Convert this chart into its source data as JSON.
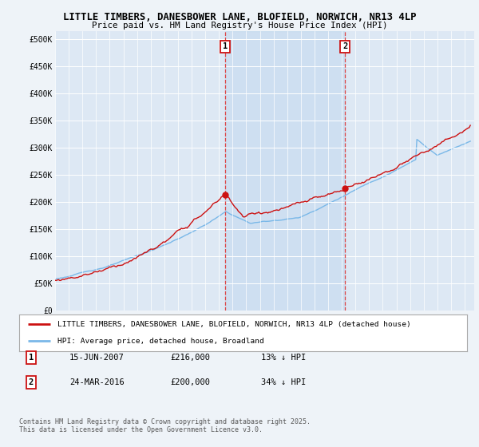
{
  "title1": "LITTLE TIMBERS, DANESBOWER LANE, BLOFIELD, NORWICH, NR13 4LP",
  "title2": "Price paid vs. HM Land Registry's House Price Index (HPI)",
  "background_color": "#eef3f8",
  "plot_bg_color": "#dde8f4",
  "shade_color": "#c8dcf0",
  "legend_label_red": "LITTLE TIMBERS, DANESBOWER LANE, BLOFIELD, NORWICH, NR13 4LP (detached house)",
  "legend_label_blue": "HPI: Average price, detached house, Broadland",
  "sale1_x": 2007.46,
  "sale1_y": 216000,
  "sale2_x": 2016.23,
  "sale2_y": 200000,
  "note1_date": "15-JUN-2007",
  "note1_price": "£216,000",
  "note1_hpi": "13% ↓ HPI",
  "note2_date": "24-MAR-2016",
  "note2_price": "£200,000",
  "note2_hpi": "34% ↓ HPI",
  "footer": "Contains HM Land Registry data © Crown copyright and database right 2025.\nThis data is licensed under the Open Government Licence v3.0.",
  "ytick_vals": [
    0,
    50000,
    100000,
    150000,
    200000,
    250000,
    300000,
    350000,
    400000,
    450000,
    500000
  ],
  "ytick_labels": [
    "£0",
    "£50K",
    "£100K",
    "£150K",
    "£200K",
    "£250K",
    "£300K",
    "£350K",
    "£400K",
    "£450K",
    "£500K"
  ],
  "ylim": [
    0,
    515000
  ],
  "xlim_start": 1995.0,
  "xlim_end": 2025.7
}
